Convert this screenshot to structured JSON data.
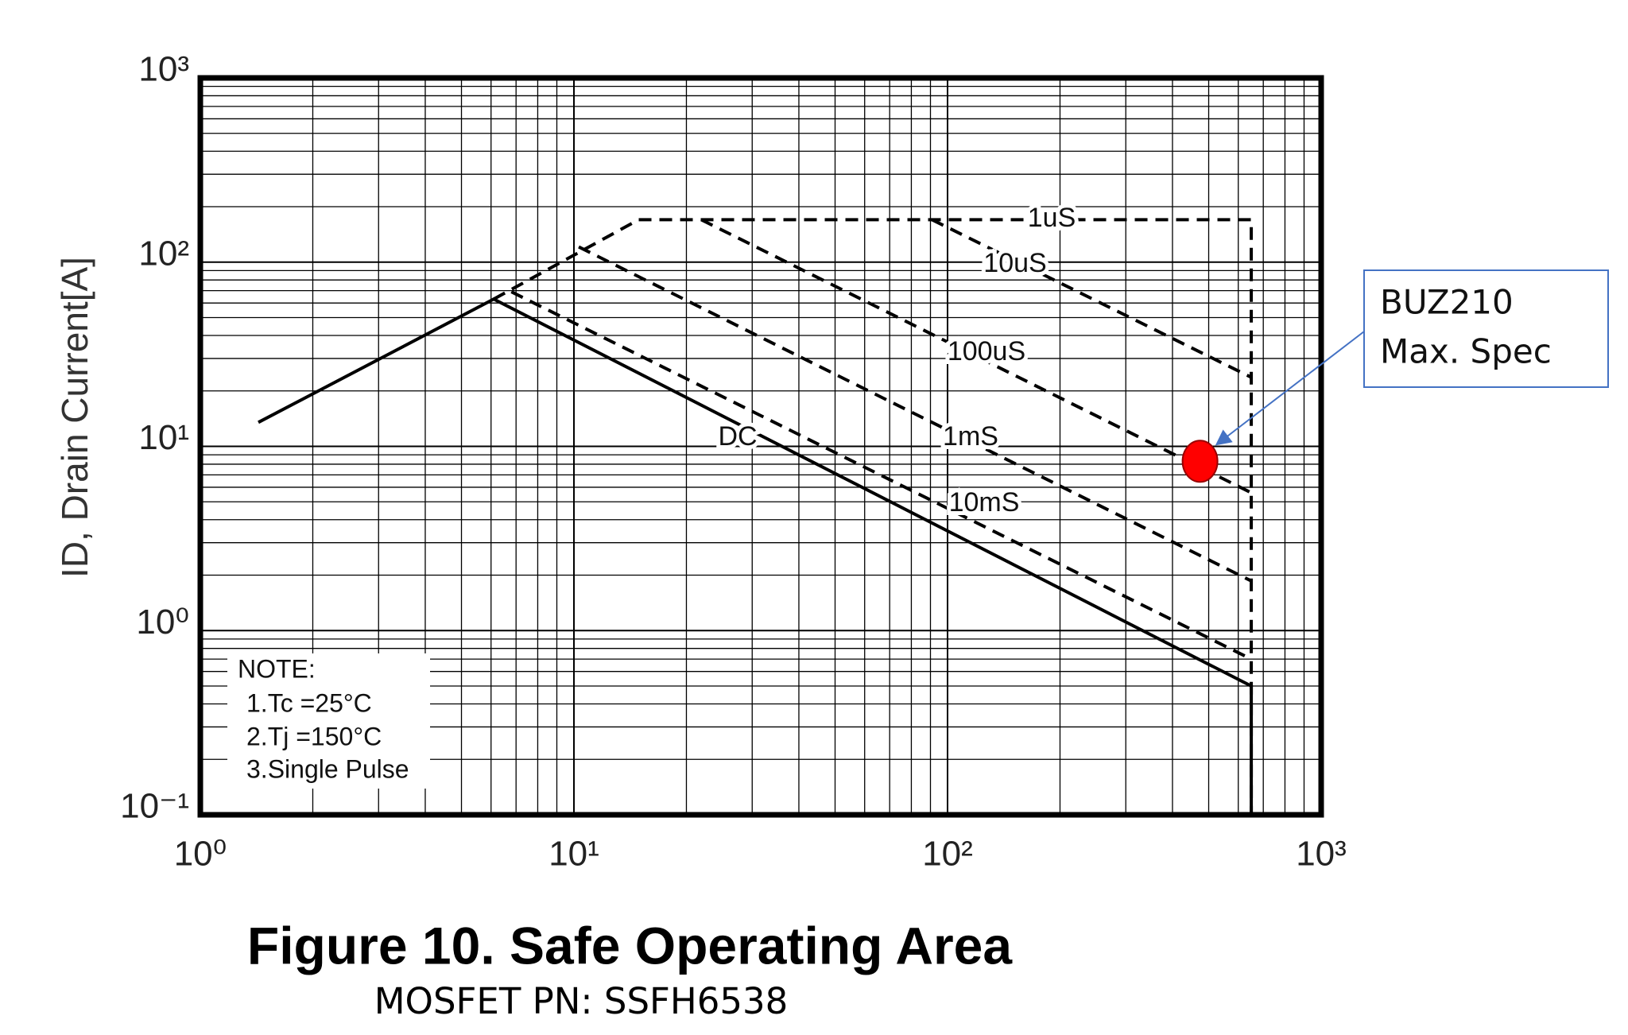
{
  "chart_data": {
    "type": "line",
    "title": "Figure 10. Safe Operating Area",
    "subtitle": "MOSFET PN: SSFH6538",
    "y_label": "ID, Drain Current[A]",
    "log_x": true,
    "log_y": true,
    "grid": true,
    "minor_grid": true,
    "xlim": [
      1,
      1000
    ],
    "xticks": [
      {
        "value": 1,
        "label": "10⁰"
      },
      {
        "value": 10,
        "label": "10¹"
      },
      {
        "value": 100,
        "label": "10²"
      },
      {
        "value": 1000,
        "label": "10³"
      }
    ],
    "ylim": [
      0.1,
      1000
    ],
    "yticks": [
      {
        "value": 0.1,
        "label": "10⁻¹"
      },
      {
        "value": 1,
        "label": "10⁰"
      },
      {
        "value": 10,
        "label": "10¹"
      },
      {
        "value": 100,
        "label": "10²"
      },
      {
        "value": 1000,
        "label": "10³"
      }
    ],
    "series": [
      {
        "name": "DC",
        "color": "#000000",
        "dashed": false,
        "x": [
          1.43,
          6.1,
          650,
          650
        ],
        "values": [
          13.5,
          63,
          0.5,
          0.1
        ]
      },
      {
        "name": "1uS",
        "color": "#000000",
        "dashed": true,
        "x": [
          6.1,
          14.9,
          650,
          650
        ],
        "values": [
          63,
          170,
          170,
          0.1
        ]
      },
      {
        "name": "10uS",
        "color": "#000000",
        "dashed": true,
        "x": [
          90.8,
          650
        ],
        "values": [
          170,
          23.7
        ]
      },
      {
        "name": "100uS",
        "color": "#000000",
        "dashed": true,
        "x": [
          21.9,
          650
        ],
        "values": [
          170,
          5.6
        ]
      },
      {
        "name": "1mS",
        "color": "#000000",
        "dashed": true,
        "x": [
          10.3,
          650
        ],
        "values": [
          121,
          1.86
        ]
      },
      {
        "name": "10mS",
        "color": "#000000",
        "dashed": true,
        "x": [
          6.8,
          650
        ],
        "values": [
          69,
          0.7
        ]
      }
    ],
    "note": [
      "NOTE:",
      "1.Tc =25°C",
      "2.Tj =150°C",
      "3.Single Pulse"
    ],
    "annotation": {
      "lines": [
        "BUZ210",
        "Max. Spec"
      ],
      "x": 474,
      "y": 8.3,
      "color": "#ff0000"
    }
  }
}
